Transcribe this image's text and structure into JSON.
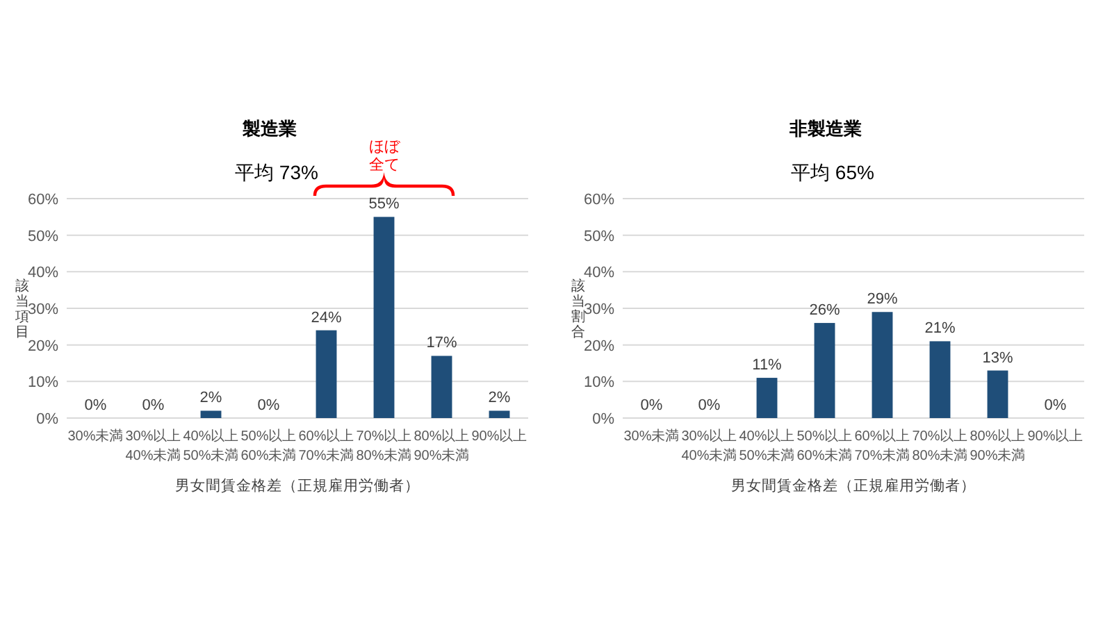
{
  "chart_data": [
    {
      "type": "bar",
      "title": "製造業",
      "subtitle": "平均 73%",
      "xlabel": "男女間賃金格差（正規雇用労働者）",
      "ylabel": "該当項目",
      "categories": [
        "30%未満",
        "30%以上\n40%未満",
        "40%以上\n50%未満",
        "50%以上\n60%未満",
        "60%以上\n70%未満",
        "70%以上\n80%未満",
        "80%以上\n90%未満",
        "90%以上"
      ],
      "values": [
        0,
        0,
        2,
        0,
        24,
        55,
        17,
        2
      ],
      "value_labels": [
        "0%",
        "0%",
        "2%",
        "0%",
        "24%",
        "55%",
        "17%",
        "2%"
      ],
      "color": "#1f4e79",
      "ylim": [
        0,
        60
      ],
      "yticks": [
        {
          "value": 0,
          "label": "0%"
        },
        {
          "value": 10,
          "label": "10%"
        },
        {
          "value": 20,
          "label": "20%"
        },
        {
          "value": 30,
          "label": "30%"
        },
        {
          "value": 40,
          "label": "40%"
        },
        {
          "value": 50,
          "label": "50%"
        },
        {
          "value": 60,
          "label": "60%"
        }
      ],
      "grid": "y",
      "annotations": [
        "ほぼ全て"
      ]
    },
    {
      "type": "bar",
      "title": "非製造業",
      "subtitle": "平均 65%",
      "xlabel": "男女間賃金格差（正規雇用労働者）",
      "ylabel": "該当割合",
      "categories": [
        "30%未満",
        "30%以上\n40%未満",
        "40%以上\n50%未満",
        "50%以上\n60%未満",
        "60%以上\n70%未満",
        "70%以上\n80%未満",
        "80%以上\n90%未満",
        "90%以上"
      ],
      "values": [
        0,
        0,
        11,
        26,
        29,
        21,
        13,
        0
      ],
      "value_labels": [
        "0%",
        "0%",
        "11%",
        "26%",
        "29%",
        "21%",
        "13%",
        "0%"
      ],
      "color": "#1f4e79",
      "ylim": [
        0,
        60
      ],
      "yticks": [
        {
          "value": 0,
          "label": "0%"
        },
        {
          "value": 10,
          "label": "10%"
        },
        {
          "value": 20,
          "label": "20%"
        },
        {
          "value": 30,
          "label": "30%"
        },
        {
          "value": 40,
          "label": "40%"
        },
        {
          "value": 50,
          "label": "50%"
        },
        {
          "value": 60,
          "label": "60%"
        }
      ],
      "grid": "y"
    }
  ]
}
